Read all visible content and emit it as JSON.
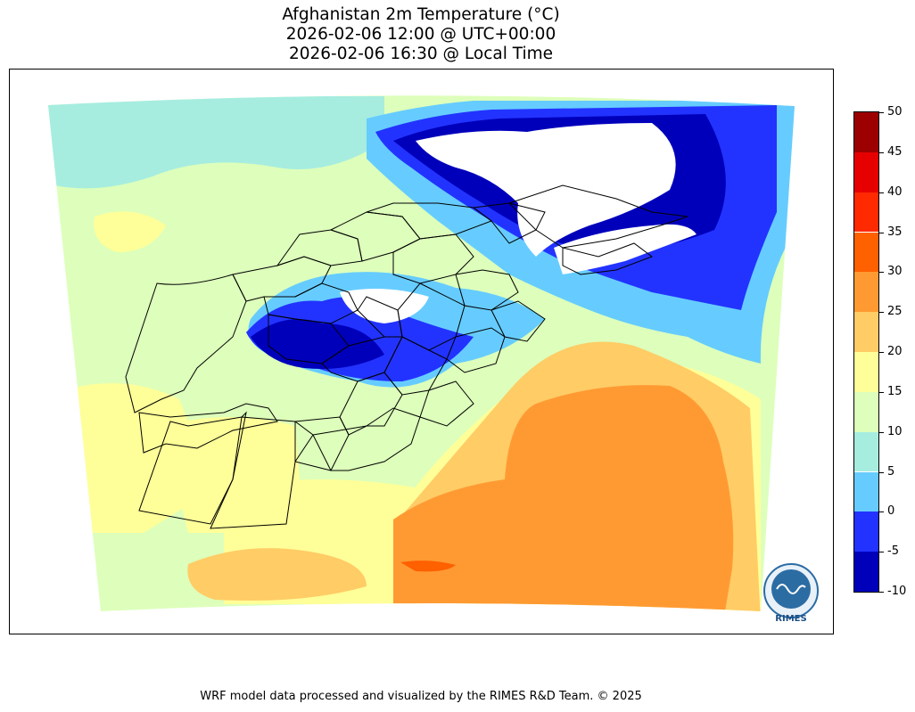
{
  "title": {
    "line1": "Afghanistan 2m Temperature (°C)",
    "line2": "2026-02-06 12:00 @ UTC+00:00",
    "line3": "2026-02-06 16:30 @ Local Time"
  },
  "colorbar": {
    "ticks": [
      "50",
      "45",
      "40",
      "35",
      "30",
      "25",
      "20",
      "15",
      "10",
      "5",
      "0",
      "-5",
      "-10"
    ],
    "bins": [
      {
        "range": [
          45,
          50
        ],
        "color": "#9c0000"
      },
      {
        "range": [
          40,
          45
        ],
        "color": "#e60000"
      },
      {
        "range": [
          35,
          40
        ],
        "color": "#ff2a00"
      },
      {
        "range": [
          30,
          35
        ],
        "color": "#ff6000"
      },
      {
        "range": [
          25,
          30
        ],
        "color": "#ff9a33"
      },
      {
        "range": [
          20,
          25
        ],
        "color": "#ffcc66"
      },
      {
        "range": [
          15,
          20
        ],
        "color": "#ffff99"
      },
      {
        "range": [
          10,
          15
        ],
        "color": "#ddffbb"
      },
      {
        "range": [
          5,
          10
        ],
        "color": "#a6ede0"
      },
      {
        "range": [
          0,
          5
        ],
        "color": "#66ccff"
      },
      {
        "range": [
          -5,
          0
        ],
        "color": "#2233ff"
      },
      {
        "range": [
          -10,
          -5
        ],
        "color": "#0000bb"
      }
    ]
  },
  "logo": {
    "text": "RIMES",
    "icon": "rimes-logo-icon"
  },
  "footer": "WRF model data processed and visualized by the RIMES R&D Team. © 2025"
}
